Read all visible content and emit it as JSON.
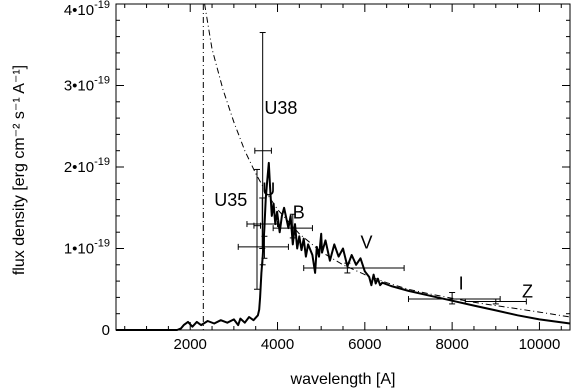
{
  "chart_data": {
    "type": "line",
    "xlabel": "wavelength [A]",
    "ylabel": "flux density [erg cm⁻² s⁻¹ A⁻¹]",
    "xlim": [
      300,
      10700
    ],
    "ylim": [
      0,
      4e-19
    ],
    "x_ticks": [
      {
        "value": 2000,
        "label": "2000"
      },
      {
        "value": 4000,
        "label": "4000"
      },
      {
        "value": 6000,
        "label": "6000"
      },
      {
        "value": 8000,
        "label": "8000"
      },
      {
        "value": 10000,
        "label": "10000"
      }
    ],
    "y_ticks": [
      {
        "value": 0,
        "label": "0"
      },
      {
        "value": 1e-19,
        "label": "1•10",
        "exp": "-19"
      },
      {
        "value": 2e-19,
        "label": "2•10",
        "exp": "-19"
      },
      {
        "value": 3e-19,
        "label": "3•10",
        "exp": "-19"
      },
      {
        "value": 4e-19,
        "label": "4•10",
        "exp": "-19"
      }
    ],
    "vertical_line": {
      "x": 2300,
      "style": "dash-dot"
    },
    "series": [
      {
        "style": "solid",
        "x": [
          300,
          1700,
          1790,
          1850,
          1950,
          2050,
          2150,
          2250,
          2400,
          2550,
          2700,
          2850,
          3000,
          3100,
          3150,
          3250,
          3350,
          3450,
          3550,
          3580,
          3600,
          3630,
          3660,
          3700,
          3730,
          3760,
          3800,
          3830,
          3870,
          3910,
          3950,
          3990,
          4050,
          4100,
          4150,
          4250,
          4300,
          4350,
          4400,
          4450,
          4500,
          4550,
          4600,
          4650,
          4700,
          4800,
          4860,
          4900,
          4950,
          5000,
          5020,
          5100,
          5200,
          5300,
          5400,
          5500,
          5600,
          5700,
          5800,
          5900,
          6000,
          6100,
          6150,
          6200,
          6250,
          6300,
          6350,
          6400,
          6600,
          7000,
          7500,
          8000,
          8500,
          9000,
          9500,
          10000,
          10700
        ],
        "y": [
          0,
          0,
          2e-21,
          6e-21,
          1e-20,
          4e-21,
          1e-20,
          6e-21,
          1.1e-20,
          8e-21,
          1.2e-20,
          9e-21,
          1.3e-20,
          6e-21,
          1.4e-20,
          9e-21,
          1.6e-20,
          1.2e-20,
          1.8e-20,
          2.5e-20,
          4e-20,
          7e-20,
          9e-20,
          1.25e-19,
          1.6e-19,
          1.8e-19,
          2.05e-19,
          1.75e-19,
          1.4e-19,
          1.55e-19,
          1.3e-19,
          1.45e-19,
          1.2e-19,
          1.4e-19,
          1.5e-19,
          1.25e-19,
          1.4e-19,
          1.05e-19,
          1.3e-19,
          1e-19,
          1.15e-19,
          9.8e-20,
          1.12e-19,
          9e-20,
          1.05e-19,
          9.2e-20,
          7e-20,
          1.02e-19,
          9e-20,
          1.18e-19,
          9.5e-20,
          1.1e-19,
          8.5e-20,
          1.05e-19,
          9e-20,
          1e-19,
          7.8e-20,
          9.2e-20,
          8e-20,
          8.8e-20,
          7.2e-20,
          6.5e-20,
          5.5e-20,
          6.8e-20,
          5.7e-20,
          6.3e-20,
          5.5e-20,
          5.8e-20,
          5.4e-20,
          4.8e-20,
          4.2e-20,
          3.6e-20,
          3e-20,
          2.4e-20,
          1.8e-20,
          1.3e-20,
          8e-21
        ]
      },
      {
        "style": "dash-dot",
        "x": [
          2330,
          2500,
          2750,
          3000,
          3250,
          3500,
          3750,
          4000,
          4500,
          5000,
          5500,
          6000,
          6500,
          7000,
          7500,
          8000,
          8500,
          9000,
          9500,
          10000,
          10700
        ],
        "y": [
          4e-19,
          3.45e-19,
          2.95e-19,
          2.55e-19,
          2.2e-19,
          1.92e-19,
          1.68e-19,
          1.48e-19,
          1.18e-19,
          9.6e-20,
          8e-20,
          6.8e-20,
          5.8e-20,
          5e-20,
          4.4e-20,
          3.9e-20,
          3.4e-20,
          3e-20,
          2.6e-20,
          2.2e-20,
          1.6e-20
        ]
      }
    ],
    "photometry": [
      {
        "band": "U38",
        "x": 3660,
        "y": 2.2e-19,
        "xlo": 3480,
        "xhi": 3860,
        "ylo": 8e-20,
        "yhi": 3.65e-19
      },
      {
        "band": "U35",
        "x": 3530,
        "y": 1.28e-19,
        "xlo": 3460,
        "xhi": 3610,
        "ylo": 5e-20,
        "yhi": 1.97e-19
      },
      {
        "band": "U",
        "x": 3650,
        "y": 1.3e-19,
        "xlo": 3300,
        "xhi": 4000,
        "ylo": 1e-19,
        "yhi": 1.62e-19
      },
      {
        "band": "B",
        "x": 4350,
        "y": 1.25e-19,
        "xlo": 3900,
        "xhi": 4800,
        "ylo": 1.13e-19,
        "yhi": 1.42e-19
      },
      {
        "band": "",
        "x": 3700,
        "y": 1.02e-19,
        "xlo": 3100,
        "xhi": 4250,
        "ylo": 8.8e-20,
        "yhi": 1.15e-19
      },
      {
        "band": "V",
        "x": 5600,
        "y": 7.6e-20,
        "xlo": 4600,
        "xhi": 6900,
        "ylo": 7e-20,
        "yhi": 8.2e-20
      },
      {
        "band": "I",
        "x": 8000,
        "y": 3.8e-20,
        "xlo": 7000,
        "xhi": 9100,
        "ylo": 3.2e-20,
        "yhi": 4.6e-20
      },
      {
        "band": "Z",
        "x": 9000,
        "y": 3.5e-20,
        "xlo": 8300,
        "xhi": 9700,
        "ylo": 3.2e-20,
        "yhi": 3.8e-20
      }
    ],
    "band_labels": [
      {
        "text": "U38",
        "x": 3700,
        "y": 2.65e-19
      },
      {
        "text": "U35",
        "x": 2550,
        "y": 1.52e-19
      },
      {
        "text": "U",
        "x": 3650,
        "y": 1.65e-19
      },
      {
        "text": "B",
        "x": 4350,
        "y": 1.37e-19
      },
      {
        "text": "V",
        "x": 5900,
        "y": 1e-19
      },
      {
        "text": "I",
        "x": 8150,
        "y": 5e-20
      },
      {
        "text": "Z",
        "x": 9600,
        "y": 4e-20
      }
    ]
  }
}
